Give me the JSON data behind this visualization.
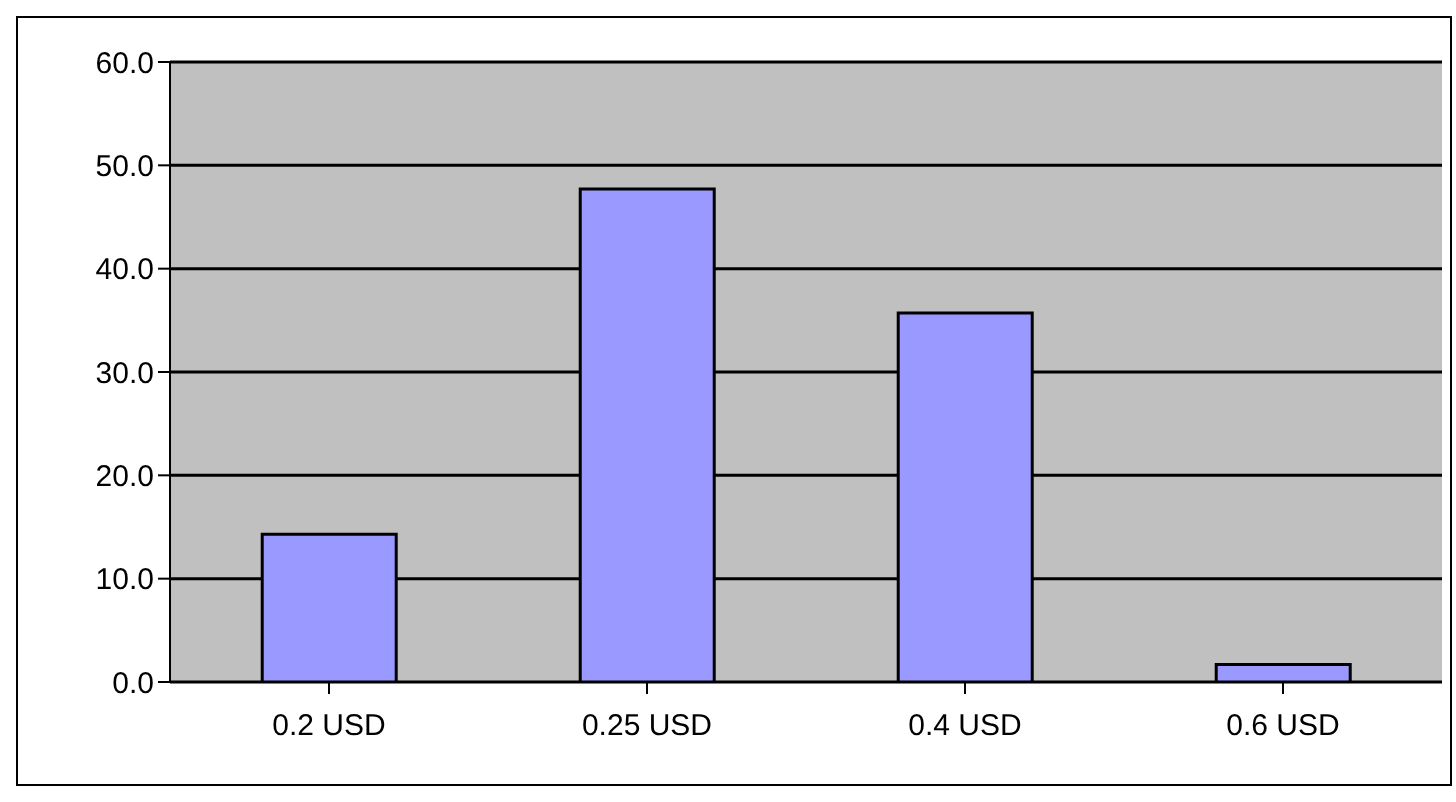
{
  "chart_data": {
    "type": "bar",
    "categories": [
      "0.2 USD",
      "0.25 USD",
      "0.4 USD",
      "0.6 USD"
    ],
    "values": [
      14.3,
      47.7,
      35.7,
      1.7
    ],
    "color": "#9999ff",
    "ylim": [
      0,
      60
    ],
    "yticks": [
      {
        "value": 0,
        "label": "0.0"
      },
      {
        "value": 10,
        "label": "10.0"
      },
      {
        "value": 20,
        "label": "20.0"
      },
      {
        "value": 30,
        "label": "30.0"
      },
      {
        "value": 40,
        "label": "40.0"
      },
      {
        "value": 50,
        "label": "50.0"
      },
      {
        "value": 60,
        "label": "60.0"
      }
    ],
    "grid": "y",
    "legend": false
  }
}
